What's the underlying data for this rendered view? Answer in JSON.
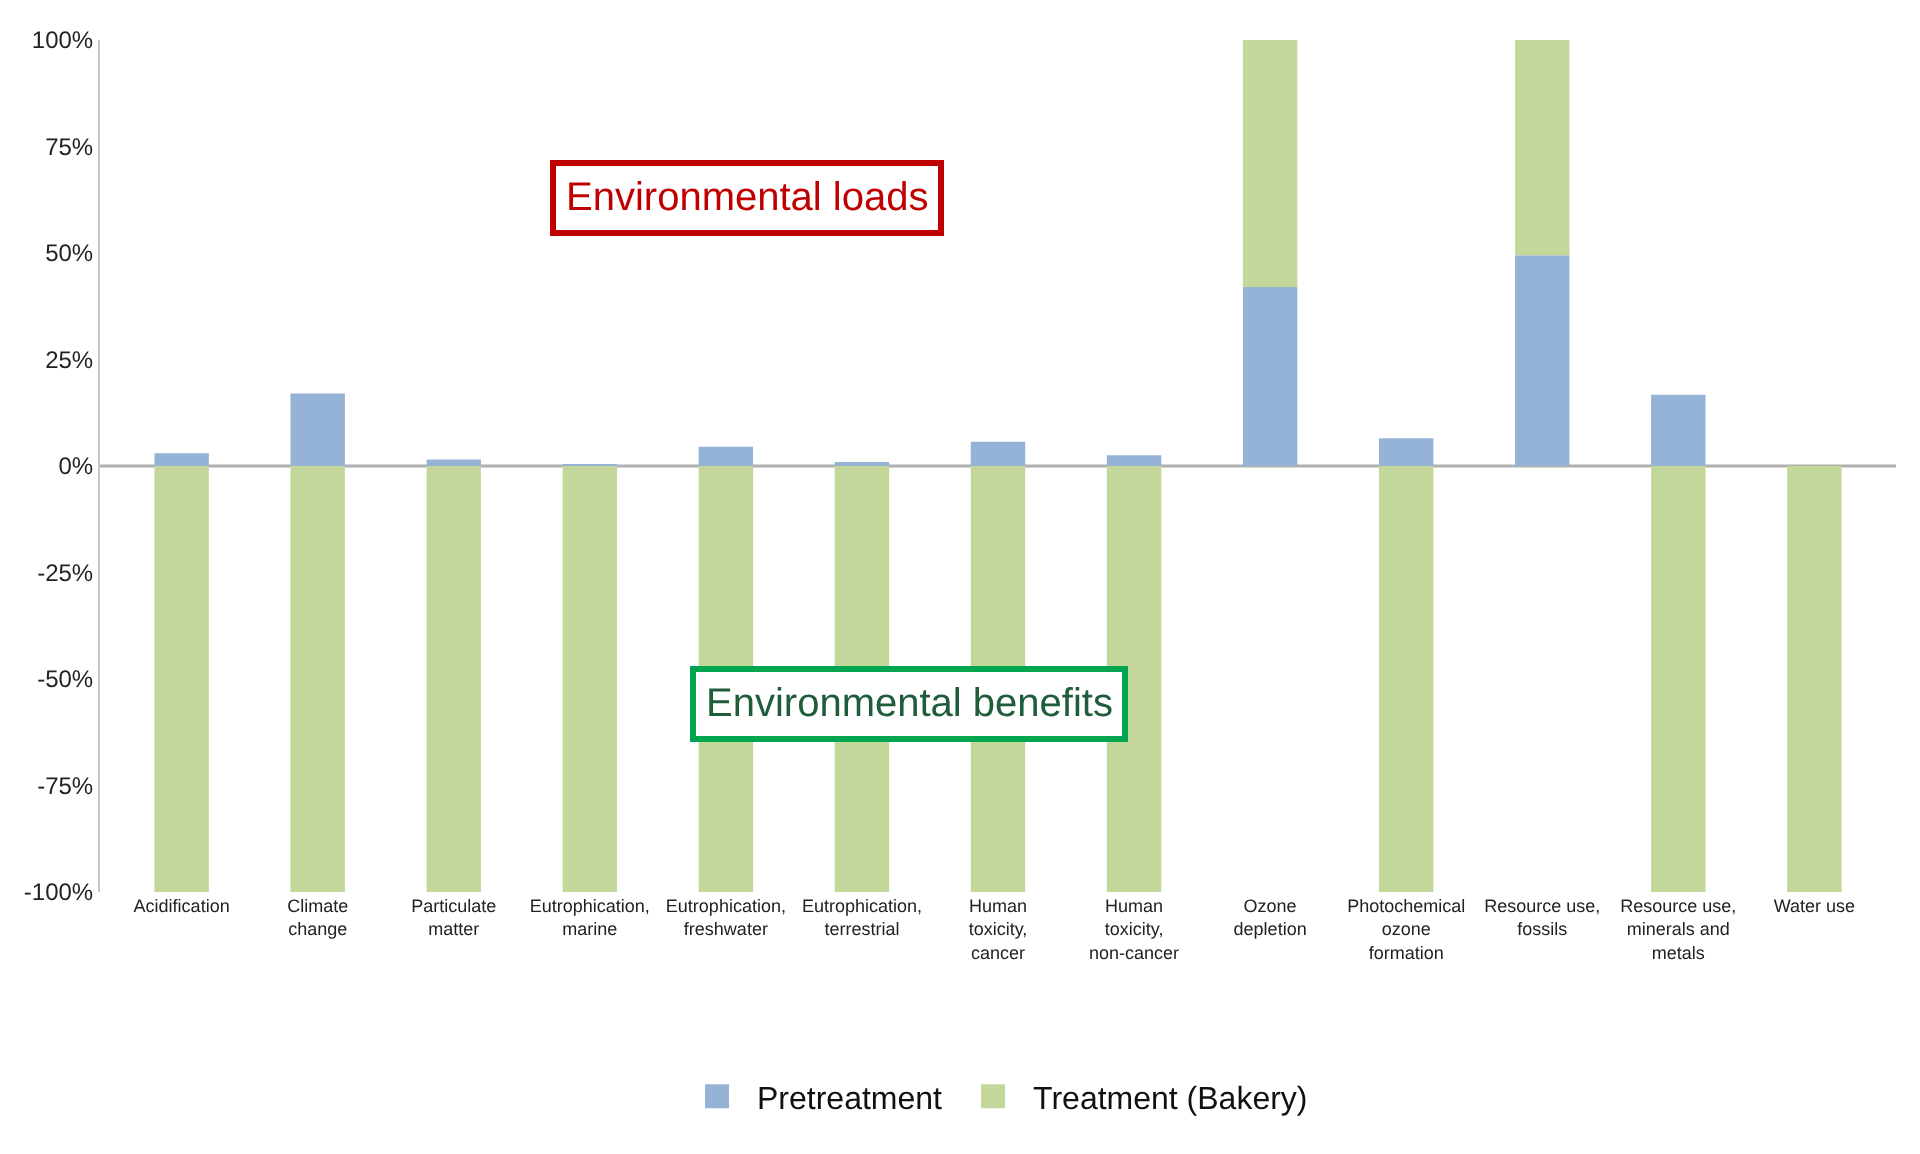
{
  "chart_data": {
    "type": "bar",
    "stacked": true,
    "categories": [
      "Acidification",
      "Climate change",
      "Particulate matter",
      "Eutrophication, marine",
      "Eutrophication, freshwater",
      "Eutrophication, terrestrial",
      "Human toxicity, cancer",
      "Human toxicity, non-cancer",
      "Ozone depletion",
      "Photochemical ozone formation",
      "Resource use, fossils",
      "Resource use, minerals and metals",
      "Water use"
    ],
    "series": [
      {
        "name": "Pretreatment",
        "color": "#95b3d7",
        "values": [
          3,
          17,
          1.5,
          0.3,
          4.5,
          0.7,
          5.7,
          2.5,
          42,
          6.5,
          49.5,
          16.7,
          0
        ]
      },
      {
        "name": "Treatment (Bakery)",
        "color": "#c4d79b",
        "values": [
          -100,
          -100,
          -100,
          -100,
          -100,
          -100,
          -100,
          -100,
          58,
          -100,
          50.5,
          -100,
          -100
        ]
      }
    ],
    "ylim": [
      -100,
      100
    ],
    "yticks": [
      {
        "value": -100,
        "label": "-100%"
      },
      {
        "value": -75,
        "label": "-75%"
      },
      {
        "value": -50,
        "label": "-50%"
      },
      {
        "value": -25,
        "label": "-25%"
      },
      {
        "value": 0,
        "label": "0%"
      },
      {
        "value": 25,
        "label": "25%"
      },
      {
        "value": 50,
        "label": "50%"
      },
      {
        "value": 75,
        "label": "75%"
      },
      {
        "value": 100,
        "label": "100%"
      }
    ],
    "annotations": [
      "Environmental loads",
      "Environmental benefits"
    ],
    "legend": "bottom"
  }
}
